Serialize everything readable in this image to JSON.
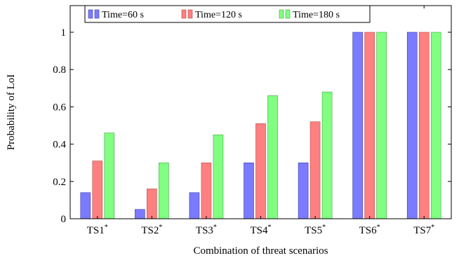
{
  "chart_data": {
    "type": "bar",
    "xlabel": "Combination of threat scenarios",
    "ylabel": "Probability of LoI",
    "categories": [
      "TS1",
      "TS2",
      "TS3",
      "TS4",
      "TS5",
      "TS6",
      "TS7"
    ],
    "category_superscript": "*",
    "ylim": [
      0,
      1
    ],
    "yticks": [
      0,
      0.2,
      0.4,
      0.6,
      0.8,
      1
    ],
    "ytick_labels": [
      "0",
      "0.2",
      "0.4",
      "0.6",
      "0.8",
      "1"
    ],
    "grid": false,
    "legend_position": "top-left",
    "series": [
      {
        "name": "Time=60 s",
        "color": "#7b7bff",
        "edge": "#3a3aaa",
        "values": [
          0.14,
          0.05,
          0.14,
          0.3,
          0.3,
          1.0,
          1.0
        ]
      },
      {
        "name": "Time=120 s",
        "color": "#ff8080",
        "edge": "#b04a4a",
        "values": [
          0.31,
          0.16,
          0.3,
          0.51,
          0.52,
          1.0,
          1.0
        ]
      },
      {
        "name": "Time=180 s",
        "color": "#80ff80",
        "edge": "#4aa04a",
        "values": [
          0.46,
          0.3,
          0.45,
          0.66,
          0.68,
          1.0,
          1.0
        ]
      }
    ]
  }
}
